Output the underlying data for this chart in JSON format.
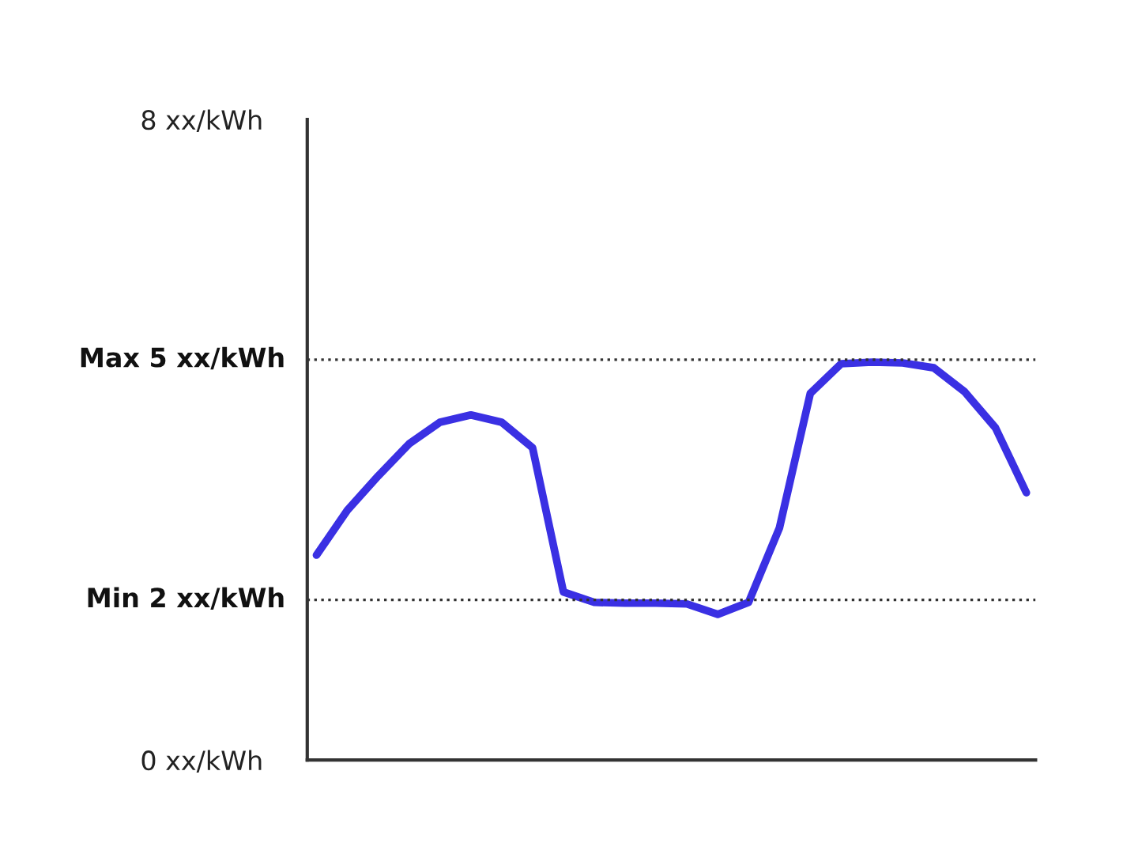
{
  "chart_data": {
    "type": "line",
    "categories": [
      null,
      null,
      null,
      null,
      null,
      null,
      null,
      null,
      null,
      null,
      null,
      null,
      null,
      null,
      null,
      null,
      null,
      null,
      null,
      null,
      null,
      null,
      null,
      null
    ],
    "series": [
      {
        "color": "#3a30e3",
        "values": [
          2.56,
          3.12,
          3.55,
          3.95,
          4.22,
          4.31,
          4.22,
          3.9,
          2.1,
          1.97,
          1.96,
          1.96,
          1.95,
          1.82,
          1.97,
          2.9,
          4.58,
          4.95,
          4.97,
          4.96,
          4.9,
          4.6,
          4.15,
          3.34
        ]
      }
    ],
    "ylim": [
      0,
      8
    ],
    "yticks": [
      {
        "value": 0,
        "label": "0 xx/kWh"
      },
      {
        "value": 8,
        "label": "8 xx/kWh"
      }
    ],
    "ref_lines": [
      {
        "axis": "y",
        "value": 5,
        "label": "Max 5 xx/kWh",
        "color": "#333333",
        "line_style": "dotted"
      },
      {
        "axis": "y",
        "value": 2,
        "label": "Min 2 xx/kWh",
        "color": "#333333",
        "line_style": "dotted"
      }
    ],
    "tick_labels": "y",
    "grid": false,
    "legend": false,
    "marker": "none",
    "line_style": "solid"
  }
}
